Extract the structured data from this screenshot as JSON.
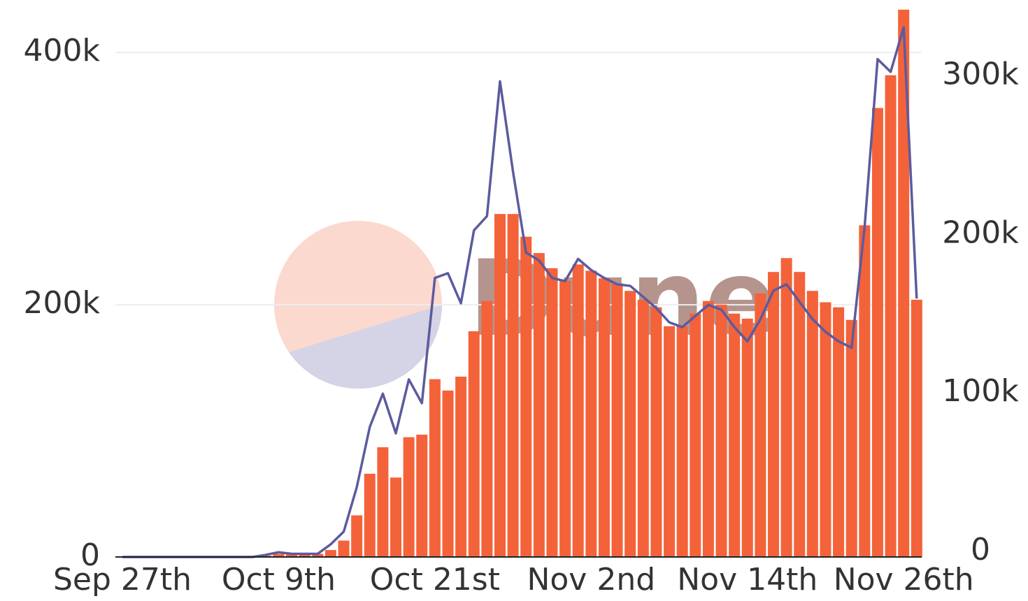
{
  "chart_data": {
    "type": "bar",
    "watermark": "Dune",
    "categories": [
      "Sep 27th",
      null,
      null,
      null,
      null,
      null,
      null,
      null,
      null,
      null,
      null,
      null,
      "Oct 9th",
      null,
      null,
      null,
      null,
      null,
      null,
      null,
      null,
      null,
      null,
      null,
      "Oct 21st",
      null,
      null,
      null,
      null,
      null,
      null,
      null,
      null,
      null,
      null,
      null,
      "Nov 2nd",
      null,
      null,
      null,
      null,
      null,
      null,
      null,
      null,
      null,
      null,
      null,
      "Nov 14th",
      null,
      null,
      null,
      null,
      null,
      null,
      null,
      null,
      null,
      null,
      null,
      "Nov 26th",
      null
    ],
    "series": [
      {
        "type": "bar",
        "color": "#f4623a",
        "values": [
          0,
          0,
          0,
          0,
          0,
          0,
          0,
          0,
          0,
          0,
          0,
          1000,
          2500,
          2500,
          2500,
          2500,
          5500,
          13000,
          33000,
          66000,
          87000,
          63000,
          95000,
          97000,
          141000,
          132000,
          143000,
          179000,
          203000,
          272000,
          272000,
          254000,
          241000,
          229000,
          219000,
          232000,
          227000,
          221000,
          217000,
          211000,
          204000,
          198000,
          183000,
          183000,
          193000,
          203000,
          200000,
          193000,
          189000,
          209000,
          226000,
          237000,
          226000,
          211000,
          202000,
          198000,
          188000,
          263000,
          356000,
          382000,
          434000,
          204000
        ]
      },
      {
        "type": "line",
        "axis": "y2",
        "color": "#5b5b9e",
        "values": [
          0,
          0,
          0,
          0,
          0,
          0,
          0,
          0,
          0,
          0,
          0,
          1300,
          3000,
          2000,
          2000,
          2000,
          8000,
          16000,
          44000,
          82000,
          103000,
          78000,
          112000,
          97000,
          176000,
          179000,
          160000,
          206000,
          215000,
          300000,
          243000,
          192000,
          187000,
          176000,
          174000,
          188000,
          181000,
          176000,
          172000,
          171000,
          164000,
          157000,
          148000,
          145000,
          152000,
          159000,
          156000,
          145000,
          136000,
          150000,
          168000,
          172000,
          161000,
          150000,
          142000,
          136000,
          132000,
          208000,
          314000,
          306000,
          334000,
          163000
        ]
      }
    ],
    "ylim": [
      0,
      440000
    ],
    "yticks": [
      0,
      {
        "value": 200000,
        "label": "200k"
      },
      {
        "value": 400000,
        "label": "400k"
      }
    ],
    "y2lim": [
      0,
      350000
    ],
    "y2ticks": [
      0,
      {
        "value": 100000,
        "label": "100k"
      },
      {
        "value": 200000,
        "label": "200k"
      },
      {
        "value": 300000,
        "label": "300k"
      }
    ],
    "grid": true
  }
}
